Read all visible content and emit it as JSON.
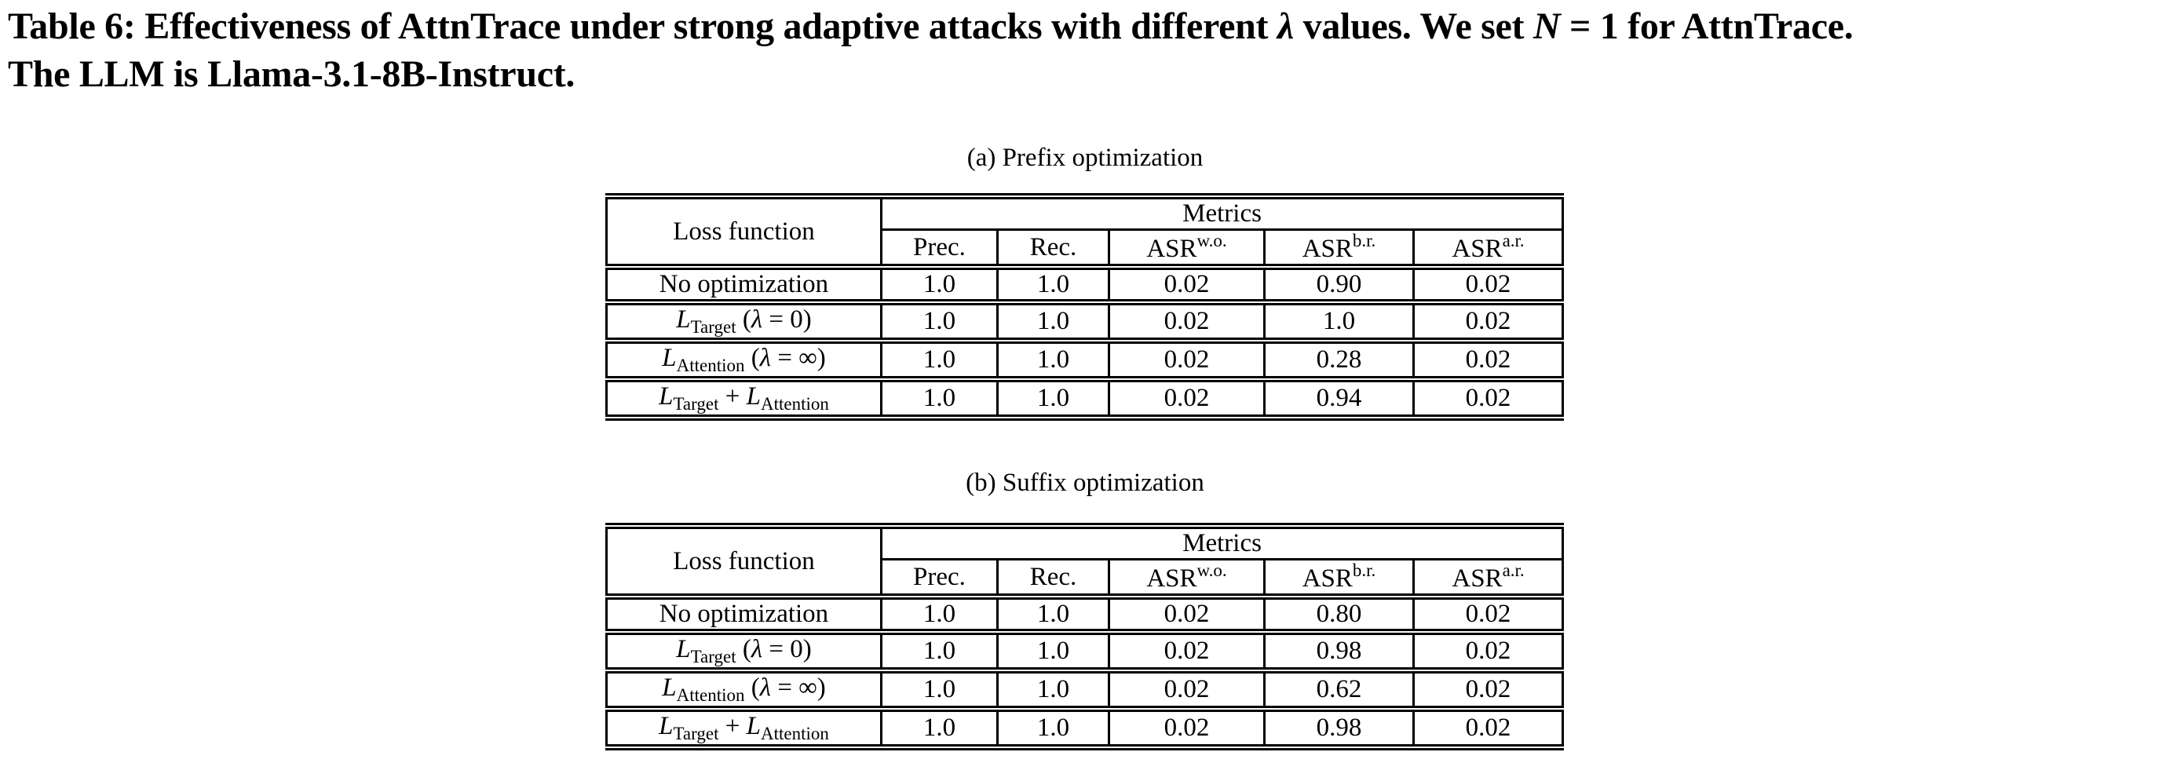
{
  "title": {
    "line1_part_a": "Table 6: Effectiveness of AttnTrace under strong adaptive attacks with different ",
    "line1_lambda": "λ",
    "line1_part_b": " values. We set ",
    "line1_n_var": "N",
    "line1_part_c": " = 1 for AttnTrace.",
    "line2": "The LLM is Llama-3.1-8B-Instruct."
  },
  "tables": [
    {
      "caption": "(a) Prefix optimization",
      "header": {
        "loss_function": "Loss function",
        "metrics": "Metrics",
        "col_prec": "Prec.",
        "col_rec": "Rec.",
        "asr_base": "ASR",
        "sup_wo": "w.o.",
        "sup_br": "b.r.",
        "sup_ar": "a.r."
      },
      "rows": [
        {
          "label": "No optimization",
          "values": [
            "1.0",
            "1.0",
            "0.02",
            "0.90",
            "0.02"
          ]
        },
        {
          "label_l": "L",
          "label_sub": "Target",
          "label_mid": " (",
          "label_lambda": "λ",
          "label_tail": " = 0)",
          "values": [
            "1.0",
            "1.0",
            "0.02",
            "1.0",
            "0.02"
          ]
        },
        {
          "label_l": "L",
          "label_sub": "Attention",
          "label_mid": " (",
          "label_lambda": "λ",
          "label_tail": " = ∞)",
          "values": [
            "1.0",
            "1.0",
            "0.02",
            "0.28",
            "0.02"
          ]
        },
        {
          "label_l": "L",
          "label_sub": "Target",
          "label_plus": " + ",
          "label_l2": "L",
          "label_sub2": "Attention",
          "values": [
            "1.0",
            "1.0",
            "0.02",
            "0.94",
            "0.02"
          ]
        }
      ]
    },
    {
      "caption": "(b) Suffix optimization",
      "header": {
        "loss_function": "Loss function",
        "metrics": "Metrics",
        "col_prec": "Prec.",
        "col_rec": "Rec.",
        "asr_base": "ASR",
        "sup_wo": "w.o.",
        "sup_br": "b.r.",
        "sup_ar": "a.r."
      },
      "rows": [
        {
          "label": "No optimization",
          "values": [
            "1.0",
            "1.0",
            "0.02",
            "0.80",
            "0.02"
          ]
        },
        {
          "label_l": "L",
          "label_sub": "Target",
          "label_mid": " (",
          "label_lambda": "λ",
          "label_tail": " = 0)",
          "values": [
            "1.0",
            "1.0",
            "0.02",
            "0.98",
            "0.02"
          ]
        },
        {
          "label_l": "L",
          "label_sub": "Attention",
          "label_mid": " (",
          "label_lambda": "λ",
          "label_tail": " = ∞)",
          "values": [
            "1.0",
            "1.0",
            "0.02",
            "0.62",
            "0.02"
          ]
        },
        {
          "label_l": "L",
          "label_sub": "Target",
          "label_plus": " + ",
          "label_l2": "L",
          "label_sub2": "Attention",
          "values": [
            "1.0",
            "1.0",
            "0.02",
            "0.98",
            "0.02"
          ]
        }
      ]
    }
  ]
}
